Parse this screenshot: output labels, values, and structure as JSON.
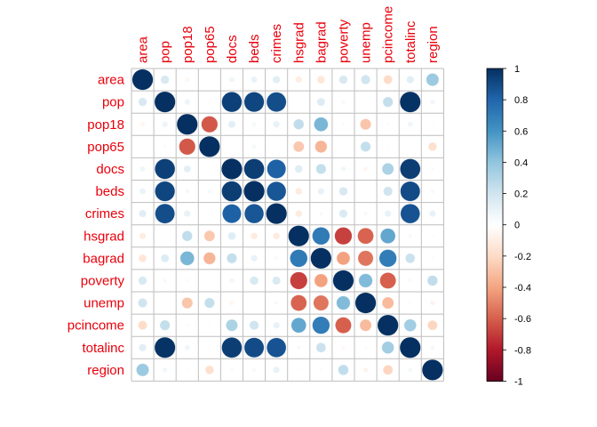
{
  "chart_data": {
    "type": "heatmap",
    "style": "circle correlation matrix",
    "title": "",
    "variables": [
      "area",
      "pop",
      "pop18",
      "pop65",
      "docs",
      "beds",
      "crimes",
      "hsgrad",
      "bagrad",
      "poverty",
      "unemp",
      "pcincome",
      "totalinc",
      "region"
    ],
    "matrix": [
      [
        1.0,
        0.17,
        -0.05,
        0.01,
        0.07,
        0.09,
        0.13,
        -0.1,
        -0.14,
        0.17,
        0.2,
        -0.19,
        0.13,
        0.37
      ],
      [
        0.17,
        1.0,
        0.08,
        -0.03,
        0.94,
        0.92,
        0.89,
        -0.02,
        0.15,
        0.04,
        0.01,
        0.24,
        0.99,
        0.06
      ],
      [
        -0.05,
        0.08,
        1.0,
        -0.62,
        0.12,
        0.05,
        0.1,
        0.25,
        0.46,
        0.03,
        -0.28,
        -0.03,
        0.07,
        -0.02
      ],
      [
        0.01,
        -0.03,
        -0.62,
        1.0,
        0.0,
        0.05,
        0.0,
        -0.27,
        -0.34,
        0.01,
        0.24,
        0.02,
        -0.02,
        -0.17
      ],
      [
        0.07,
        0.94,
        0.12,
        0.0,
        1.0,
        0.95,
        0.82,
        0.14,
        0.24,
        0.06,
        -0.05,
        0.32,
        0.95,
        0.03
      ],
      [
        0.09,
        0.92,
        0.05,
        0.05,
        0.95,
        1.0,
        0.86,
        -0.11,
        0.1,
        0.17,
        0.0,
        0.2,
        0.9,
        0.04
      ],
      [
        0.13,
        0.89,
        0.1,
        0.0,
        0.82,
        0.86,
        1.0,
        -0.11,
        0.04,
        0.16,
        0.04,
        0.1,
        0.87,
        0.1
      ],
      [
        -0.1,
        -0.02,
        0.25,
        -0.27,
        0.14,
        -0.11,
        -0.11,
        1.0,
        0.71,
        -0.69,
        -0.59,
        0.52,
        0.04,
        -0.02
      ],
      [
        -0.14,
        0.15,
        0.46,
        -0.34,
        0.24,
        0.1,
        0.04,
        0.71,
        1.0,
        -0.41,
        -0.54,
        0.7,
        0.22,
        -0.03
      ],
      [
        0.17,
        0.04,
        0.03,
        0.01,
        0.06,
        0.17,
        0.16,
        -0.69,
        -0.41,
        1.0,
        0.44,
        -0.6,
        -0.04,
        0.25
      ],
      [
        0.2,
        0.01,
        -0.28,
        0.24,
        -0.05,
        0.0,
        0.04,
        -0.59,
        -0.54,
        0.44,
        1.0,
        -0.32,
        -0.03,
        -0.06
      ],
      [
        -0.19,
        0.24,
        -0.03,
        0.02,
        0.32,
        0.2,
        0.1,
        0.52,
        0.7,
        -0.6,
        -0.32,
        1.0,
        0.35,
        -0.22
      ],
      [
        0.13,
        0.99,
        0.07,
        -0.02,
        0.95,
        0.9,
        0.87,
        0.04,
        0.22,
        -0.04,
        -0.03,
        0.35,
        1.0,
        0.05
      ],
      [
        0.37,
        0.06,
        -0.02,
        -0.17,
        0.03,
        0.04,
        0.1,
        -0.02,
        -0.03,
        0.25,
        -0.06,
        -0.22,
        0.05,
        1.0
      ]
    ],
    "colorbar": {
      "range": [
        -1,
        1
      ],
      "ticks": [
        "1",
        "0.8",
        "0.6",
        "0.4",
        "0.2",
        "0",
        "-0.2",
        "-0.4",
        "-0.6",
        "-0.8",
        "-1"
      ],
      "tick_values": [
        1,
        0.8,
        0.6,
        0.4,
        0.2,
        0,
        -0.2,
        -0.4,
        -0.6,
        -0.8,
        -1
      ],
      "colors": [
        "#67001F",
        "#B2182B",
        "#D6604D",
        "#F4A582",
        "#FDDBC7",
        "#FFFFFF",
        "#D1E5F0",
        "#92C5DE",
        "#4393C3",
        "#2166AC",
        "#053061"
      ]
    },
    "label_color": "#E8000B",
    "grid": true
  }
}
